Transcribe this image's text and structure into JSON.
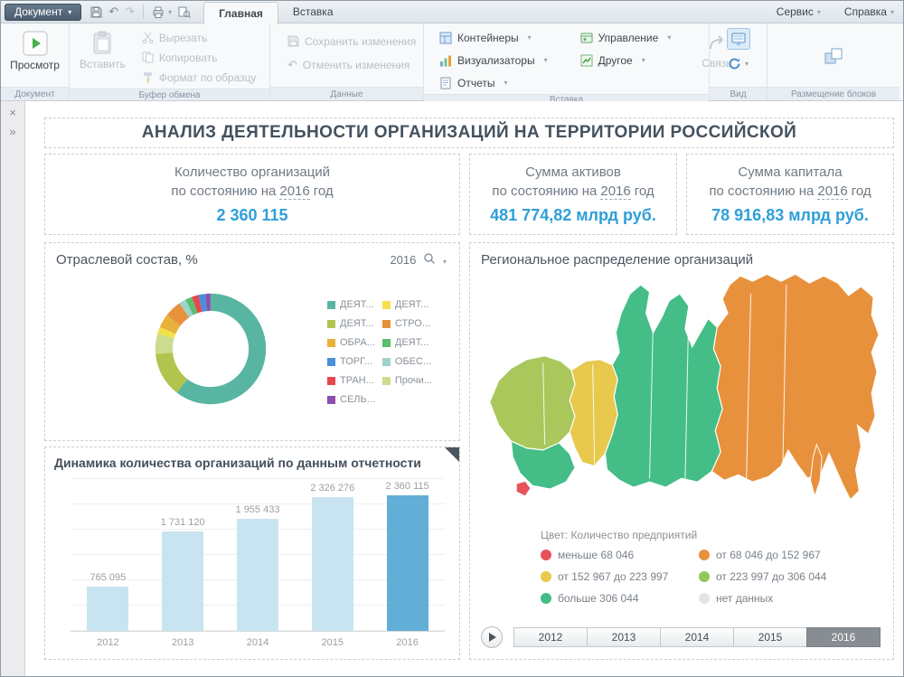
{
  "icons": {
    "close": "×",
    "collapse": "»",
    "undo": "↶",
    "redo": "↷"
  },
  "titlebar": {
    "document_button": "Документ",
    "tabs": [
      {
        "label": "Главная"
      },
      {
        "label": "Вставка"
      }
    ],
    "menus": [
      {
        "label": "Сервис"
      },
      {
        "label": "Справка"
      }
    ]
  },
  "ribbon": {
    "preview": "Просмотр",
    "paste": "Вставить",
    "cut": "Вырезать",
    "copy": "Копировать",
    "format_painter": "Формат по образцу",
    "save_changes": "Сохранить изменения",
    "discard_changes": "Отменить изменения",
    "containers": "Контейнеры",
    "visualizers": "Визуализаторы",
    "reports": "Отчеты",
    "management": "Управление",
    "other": "Другое",
    "link": "Связь",
    "groups": [
      "Документ",
      "Буфер обмена",
      "Данные",
      "Вставка",
      "Вид",
      "Размещение блоков"
    ]
  },
  "dashboard": {
    "title": "АНАЛИЗ ДЕЯТЕЛЬНОСТИ ОРГАНИЗАЦИЙ НА ТЕРРИТОРИИ РОССИЙСКОЙ",
    "kpis": [
      {
        "title": "Количество организаций",
        "subtitle_prefix": "по состоянию на",
        "year": "2016",
        "subtitle_suffix": "год",
        "value": "2 360 115"
      },
      {
        "title": "Сумма активов",
        "subtitle_prefix": "по состоянию на",
        "year": "2016",
        "subtitle_suffix": "год",
        "value": "481 774,82 млрд руб."
      },
      {
        "title": "Сумма капитала",
        "subtitle_prefix": "по состоянию на",
        "year": "2016",
        "subtitle_suffix": "год",
        "value": "78 916,83 млрд руб."
      }
    ],
    "industry_panel": {
      "title": "Отраслевой состав, %",
      "year": "2016"
    },
    "dynamics_panel": {
      "title": "Динамика количества организаций по данным отчетности"
    },
    "map_panel": {
      "title": "Региональное распределение организаций",
      "legend_title": "Цвет: Количество предприятий",
      "years": [
        "2012",
        "2013",
        "2014",
        "2015",
        "2016"
      ],
      "active_year": "2016"
    }
  },
  "map_colors": {
    "olive": "#a9c75b",
    "yellow": "#e8c94d",
    "green": "#44bd87",
    "orange": "#e8913c",
    "red": "#e8535a"
  },
  "chart_data": [
    {
      "type": "pie",
      "subtype": "donut",
      "title": "Отраслевой состав, %",
      "year": "2016",
      "series": [
        {
          "name": "ДЕЯТ...",
          "value": 60.5,
          "color": "#58b5a2"
        },
        {
          "name": "ДЕЯТ...",
          "value": 13,
          "color": "#b1c44e"
        },
        {
          "name": "Прочи...",
          "value": 6,
          "color": "#cbdc8e"
        },
        {
          "name": "ДЕЯТ...",
          "value": 2,
          "color": "#f2e14c"
        },
        {
          "name": "ОБРА...",
          "value": 4,
          "color": "#e6b23a"
        },
        {
          "name": "СТРО...",
          "value": 5,
          "color": "#e8913c"
        },
        {
          "name": "ОБЕС...",
          "value": 2,
          "color": "#9ed3cd"
        },
        {
          "name": "ДЕЯТ...",
          "value": 2,
          "color": "#5bbf72"
        },
        {
          "name": "ТРАН...",
          "value": 2,
          "color": "#e6484f"
        },
        {
          "name": "ТОРГ...",
          "value": 2,
          "color": "#4a8fd9"
        },
        {
          "name": "СЕЛЬ...",
          "value": 1.5,
          "color": "#8e4fad"
        }
      ],
      "legend_columns": [
        [
          {
            "label": "ДЕЯТ...",
            "color": "#58b5a2"
          },
          {
            "label": "ДЕЯТ...",
            "color": "#b1c44e"
          },
          {
            "label": "ОБРА...",
            "color": "#e6b23a"
          },
          {
            "label": "ТОРГ...",
            "color": "#4a8fd9"
          },
          {
            "label": "ТРАН...",
            "color": "#e6484f"
          },
          {
            "label": "СЕЛЬ...",
            "color": "#8e4fad"
          }
        ],
        [
          {
            "label": "ДЕЯТ...",
            "color": "#f2e14c"
          },
          {
            "label": "СТРО...",
            "color": "#e8913c"
          },
          {
            "label": "ДЕЯТ...",
            "color": "#5bbf72"
          },
          {
            "label": "ОБЕС...",
            "color": "#9ed3cd"
          },
          {
            "label": "Прочи...",
            "color": "#cbdc8e"
          }
        ]
      ]
    },
    {
      "type": "bar",
      "title": "Динамика количества организаций по данным отчетности",
      "categories": [
        "2012",
        "2013",
        "2014",
        "2015",
        "2016"
      ],
      "values": [
        765095,
        1731120,
        1955433,
        2326276,
        2360115
      ],
      "labels": [
        "765 095",
        "1 731 120",
        "1 955 433",
        "2 326 276",
        "2 360 115"
      ],
      "bar_color": "#c9e4f1",
      "highlight_color": "#62aed6",
      "highlight_index": 4,
      "ylim": [
        0,
        2400000
      ],
      "grid": true
    },
    {
      "type": "heatmap",
      "subtype": "choropleth-map",
      "title": "Региональное распределение организаций",
      "legend_title": "Цвет: Количество предприятий",
      "classes": [
        {
          "label": "меньше 68 046",
          "color": "#e8535a"
        },
        {
          "label": "от 68 046 до 152 967",
          "color": "#e8913c"
        },
        {
          "label": "от 152 967 до 223 997",
          "color": "#e8c94d"
        },
        {
          "label": "от 223 997 до 306 044",
          "color": "#8fc75b"
        },
        {
          "label": "больше 306 044",
          "color": "#44bd87"
        },
        {
          "label": "нет данных",
          "color": "#e4e4e4"
        }
      ],
      "years": [
        "2012",
        "2013",
        "2014",
        "2015",
        "2016"
      ],
      "active_year": "2016"
    }
  ]
}
